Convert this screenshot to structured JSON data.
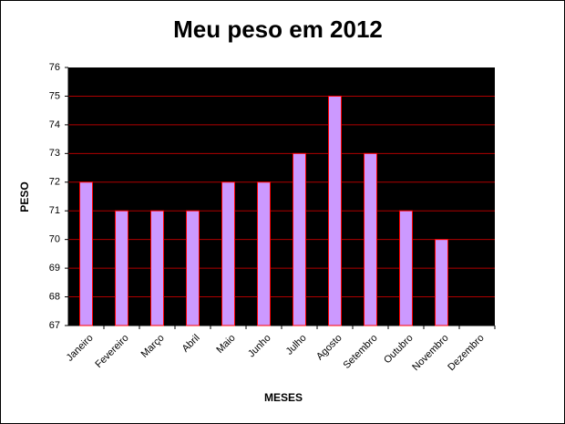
{
  "chart_data": {
    "type": "bar",
    "title": "Meu peso em 2012",
    "x_label": "MESES",
    "y_label": "PESO",
    "categories": [
      "Janeiro",
      "Fevereiro",
      "Março",
      "Abril",
      "Maio",
      "Junho",
      "Julho",
      "Agosto",
      "Setembro",
      "Outubro",
      "Novembro",
      "Dezembro"
    ],
    "values": [
      72,
      71,
      71,
      71,
      72,
      72,
      73,
      75,
      73,
      71,
      70,
      null
    ],
    "color": "#cc99ff",
    "edge_color": "#ff0000",
    "plot_background": "#000000",
    "grid_color": "#b00000",
    "ylim": [
      67,
      76
    ],
    "yticks": [
      67,
      68,
      69,
      70,
      71,
      72,
      73,
      74,
      75,
      76
    ],
    "grid": true
  }
}
